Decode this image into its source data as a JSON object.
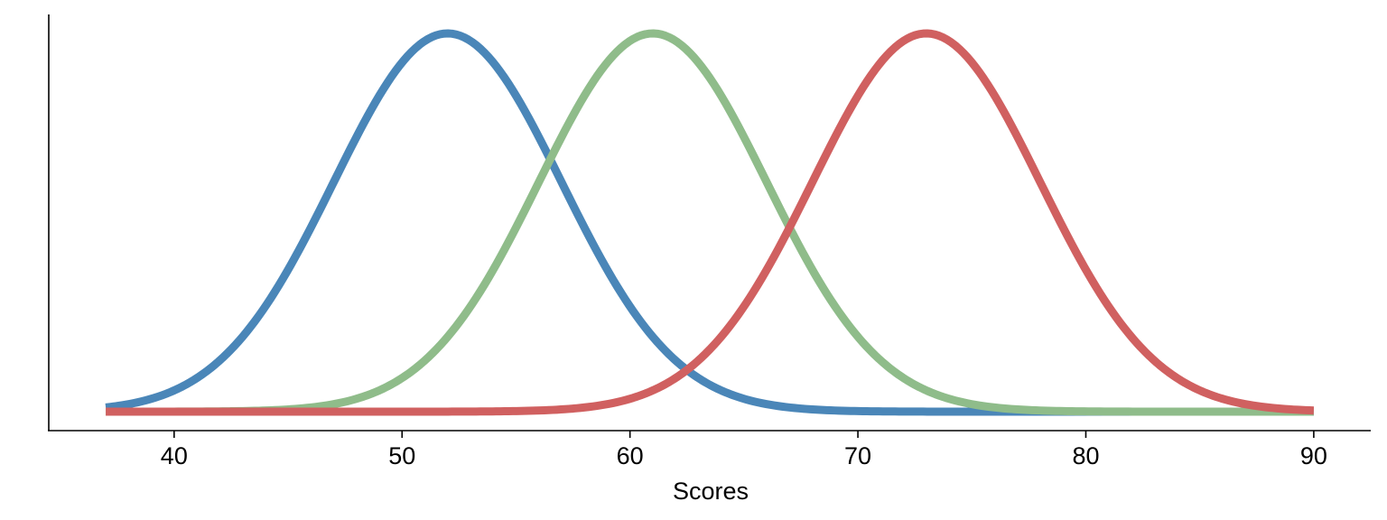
{
  "chart_data": {
    "type": "line",
    "title": "",
    "xlabel": "Scores",
    "ylabel": "",
    "xlim": [
      34.5,
      92.5
    ],
    "ylim": [
      0,
      1
    ],
    "x_ticks": [
      40,
      50,
      60,
      70,
      80,
      90
    ],
    "x_tick_labels": [
      "40",
      "50",
      "60",
      "70",
      "80",
      "90"
    ],
    "y_ticks_shown": false,
    "grid": false,
    "legend": "none",
    "x_range": [
      37,
      90
    ],
    "series": [
      {
        "color": "#4a86b8",
        "distribution": "normal",
        "mean": 52,
        "sd": 5
      },
      {
        "color": "#8fbc8a",
        "distribution": "normal",
        "mean": 61,
        "sd": 5
      },
      {
        "color": "#d06060",
        "distribution": "normal",
        "mean": 73,
        "sd": 5
      }
    ]
  }
}
